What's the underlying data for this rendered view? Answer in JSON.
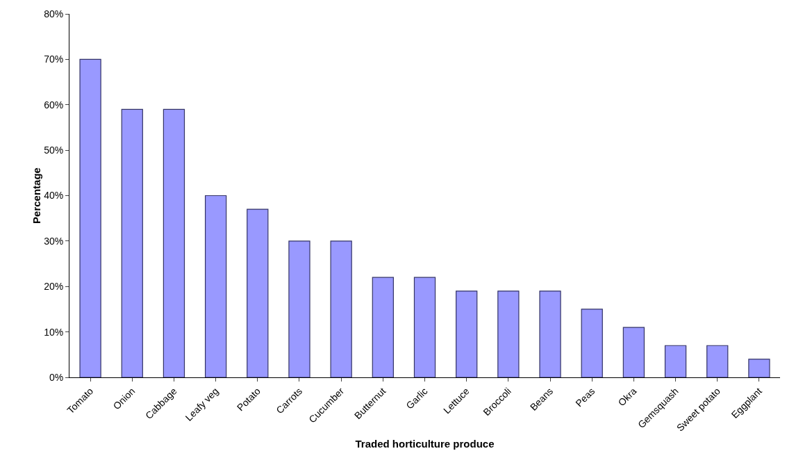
{
  "chart_data": {
    "type": "bar",
    "xlabel": "Traded horticulture produce",
    "ylabel": "Percentage",
    "categories": [
      "Tomato",
      "Onion",
      "Cabbage",
      "Leafy veg",
      "Potato",
      "Carrots",
      "Cucumber",
      "Butternut",
      "Garlic",
      "Lettuce",
      "Broccoli",
      "Beans",
      "Peas",
      "Okra",
      "Gemsquash",
      "Sweet potato",
      "Eggplant"
    ],
    "values": [
      70,
      59,
      59,
      40,
      37,
      30,
      30,
      22,
      22,
      19,
      19,
      19,
      15,
      11,
      7,
      7,
      4
    ],
    "color": "#9999ff",
    "ylim": [
      0,
      80
    ],
    "yticks": [
      {
        "value": 0,
        "label": "0%"
      },
      {
        "value": 10,
        "label": "10%"
      },
      {
        "value": 20,
        "label": "20%"
      },
      {
        "value": 30,
        "label": "30%"
      },
      {
        "value": 40,
        "label": "40%"
      },
      {
        "value": 50,
        "label": "50%"
      },
      {
        "value": 60,
        "label": "60%"
      },
      {
        "value": 70,
        "label": "70%"
      },
      {
        "value": 80,
        "label": "80%"
      }
    ],
    "grid": false
  }
}
